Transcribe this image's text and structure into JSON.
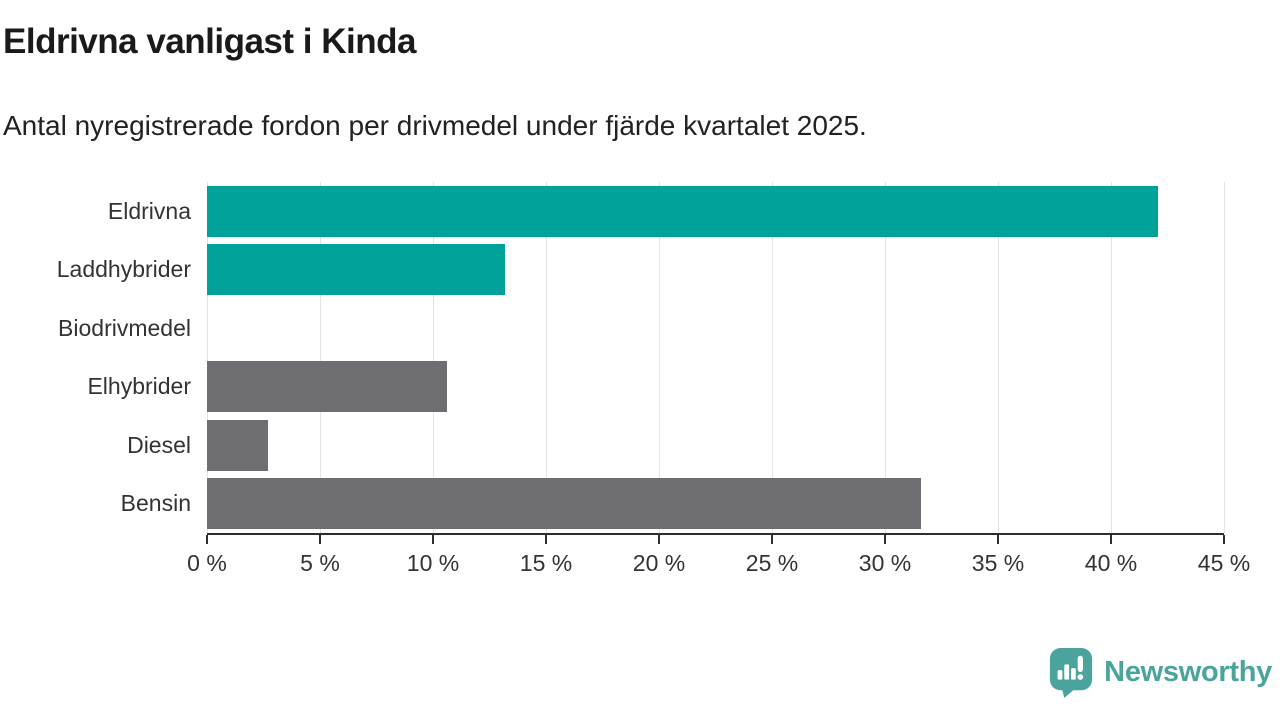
{
  "header": {
    "title": "Eldrivna vanligast i Kinda",
    "subtitle": "Antal nyregistrerade fordon per drivmedel under fjärde kvartalet 2025."
  },
  "colors": {
    "teal_bar": "#00a29a",
    "gray_bar": "#6e6e72",
    "gridline": "#e3e3e3",
    "axis": "#2e2e2e",
    "logo_teal": "#4aa49d"
  },
  "chart_data": {
    "type": "bar",
    "orientation": "horizontal",
    "categories": [
      "Eldrivna",
      "Laddhybrider",
      "Biodrivmedel",
      "Elhybrider",
      "Diesel",
      "Bensin"
    ],
    "values": [
      42.1,
      13.2,
      0,
      10.6,
      2.7,
      31.6
    ],
    "bar_colors": [
      "#00a29a",
      "#00a29a",
      "#00a29a",
      "#6e6e72",
      "#6e6e72",
      "#6e6e72"
    ],
    "title": "Eldrivna vanligast i Kinda",
    "subtitle": "Antal nyregistrerade fordon per drivmedel under fjärde kvartalet 2025.",
    "xlabel": "",
    "ylabel": "",
    "xlim": [
      0,
      45
    ],
    "x_tick_step": 5,
    "x_tick_labels": [
      "0 %",
      "5 %",
      "10 %",
      "15 %",
      "20 %",
      "25 %",
      "30 %",
      "35 %",
      "40 %",
      "45 %"
    ],
    "grid": "vertical",
    "legend": "none",
    "unit": "percent"
  },
  "footer": {
    "brand": "Newsworthy"
  }
}
